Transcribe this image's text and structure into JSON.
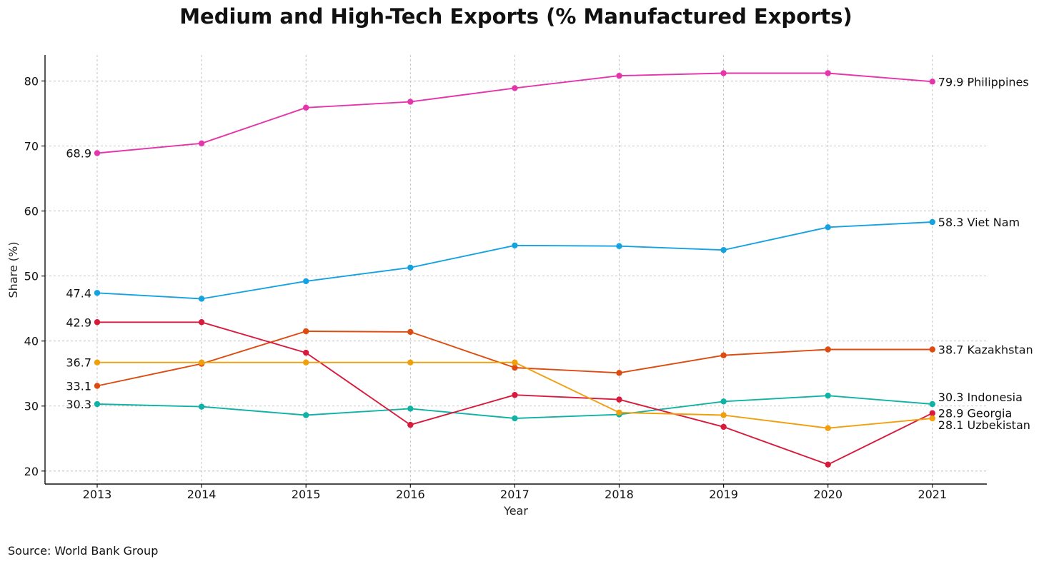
{
  "chart_data": {
    "type": "line",
    "title": "Medium and High-Tech Exports (% Manufactured Exports)",
    "xlabel": "Year",
    "ylabel": "Share (%)",
    "source": "Source: World Bank Group",
    "x": [
      2013,
      2014,
      2015,
      2016,
      2017,
      2018,
      2019,
      2020,
      2021
    ],
    "ylim": [
      18,
      84
    ],
    "yticks": [
      20,
      30,
      40,
      50,
      60,
      70,
      80
    ],
    "grid": true,
    "series": [
      {
        "name": "Philippines",
        "color": "#e535ab",
        "values": [
          68.9,
          70.4,
          75.9,
          76.8,
          78.9,
          80.8,
          81.2,
          81.2,
          79.9
        ],
        "start_label": "68.9",
        "end_label": "79.9 Philippines"
      },
      {
        "name": "Viet Nam",
        "color": "#15a2e0",
        "values": [
          47.4,
          46.5,
          49.2,
          51.3,
          54.7,
          54.6,
          54.0,
          57.5,
          58.3
        ],
        "start_label": "47.4",
        "end_label": "58.3 Viet Nam"
      },
      {
        "name": "Kazakhstan",
        "color": "#dd4b10",
        "values": [
          33.1,
          36.5,
          41.5,
          41.4,
          35.9,
          35.1,
          37.8,
          38.7,
          38.7
        ],
        "start_label": "33.1",
        "end_label": "38.7 Kazakhstan"
      },
      {
        "name": "Indonesia",
        "color": "#0fb2a5",
        "values": [
          30.3,
          29.9,
          28.6,
          29.6,
          28.1,
          28.7,
          30.7,
          31.6,
          30.3
        ],
        "start_label": "30.3",
        "end_label": "30.3 Indonesia"
      },
      {
        "name": "Georgia",
        "color": "#d81a3c",
        "values": [
          42.9,
          42.9,
          38.2,
          27.1,
          31.7,
          31.0,
          26.8,
          21.0,
          28.9
        ],
        "start_label": "42.9",
        "end_label": "28.9 Georgia"
      },
      {
        "name": "Uzbekistan",
        "color": "#f0a00d",
        "values": [
          36.7,
          36.7,
          36.7,
          36.7,
          36.7,
          29.0,
          28.6,
          26.6,
          28.1
        ],
        "start_label": "36.7",
        "end_label": "28.1 Uzbekistan"
      }
    ]
  }
}
